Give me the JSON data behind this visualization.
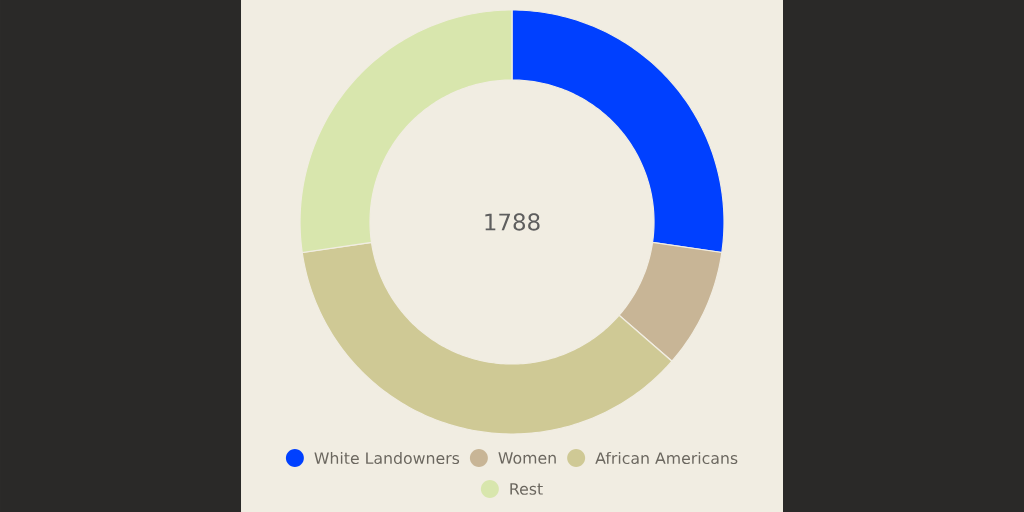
{
  "chart_data": {
    "type": "donut",
    "title": "1788",
    "categories": [
      "White Landowners",
      "Women",
      "African Americans",
      "Rest"
    ],
    "values": [
      27.3,
      9.1,
      36.3,
      27.3
    ],
    "colors": [
      "#0040ff",
      "#c8b596",
      "#cfc995",
      "#d8e6ad"
    ],
    "legend": "bottom"
  }
}
